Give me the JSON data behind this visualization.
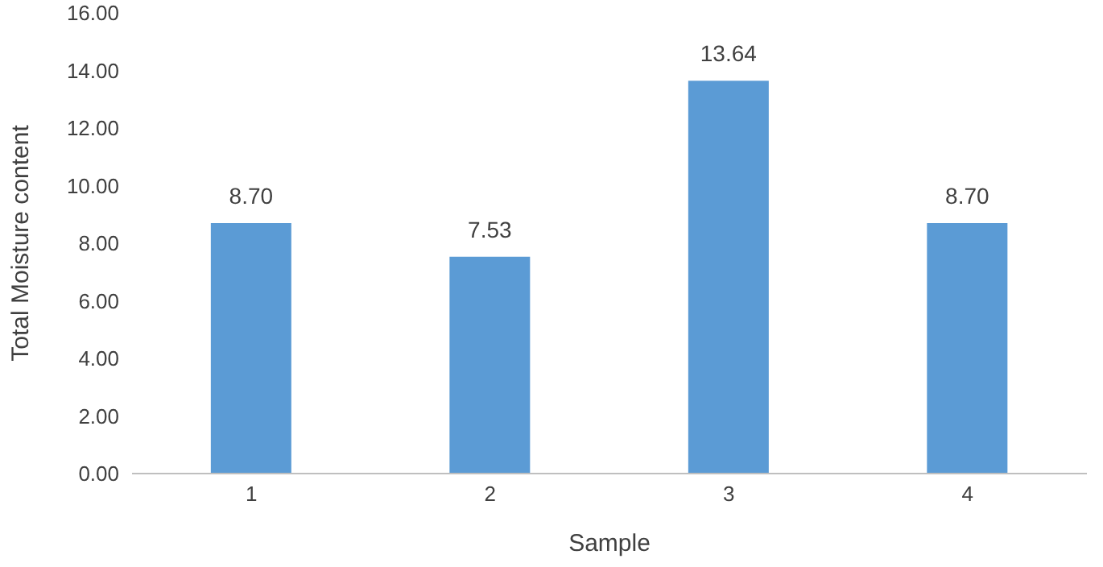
{
  "chart_data": {
    "type": "bar",
    "categories": [
      "1",
      "2",
      "3",
      "4"
    ],
    "values": [
      8.7,
      7.53,
      13.64,
      8.7
    ],
    "value_labels": [
      "8.70",
      "7.53",
      "13.64",
      "8.70"
    ],
    "color": "#5b9bd5",
    "xlabel": "Sample",
    "ylabel": "Total Moisture content",
    "ylim": [
      0,
      16
    ],
    "yticks": [
      {
        "value": 0,
        "label": "0.00"
      },
      {
        "value": 2,
        "label": "2.00"
      },
      {
        "value": 4,
        "label": "4.00"
      },
      {
        "value": 6,
        "label": "6.00"
      },
      {
        "value": 8,
        "label": "8.00"
      },
      {
        "value": 10,
        "label": "10.00"
      },
      {
        "value": 12,
        "label": "12.00"
      },
      {
        "value": 14,
        "label": "14.00"
      },
      {
        "value": 16,
        "label": "16.00"
      }
    ],
    "grid": false,
    "legend": false
  }
}
